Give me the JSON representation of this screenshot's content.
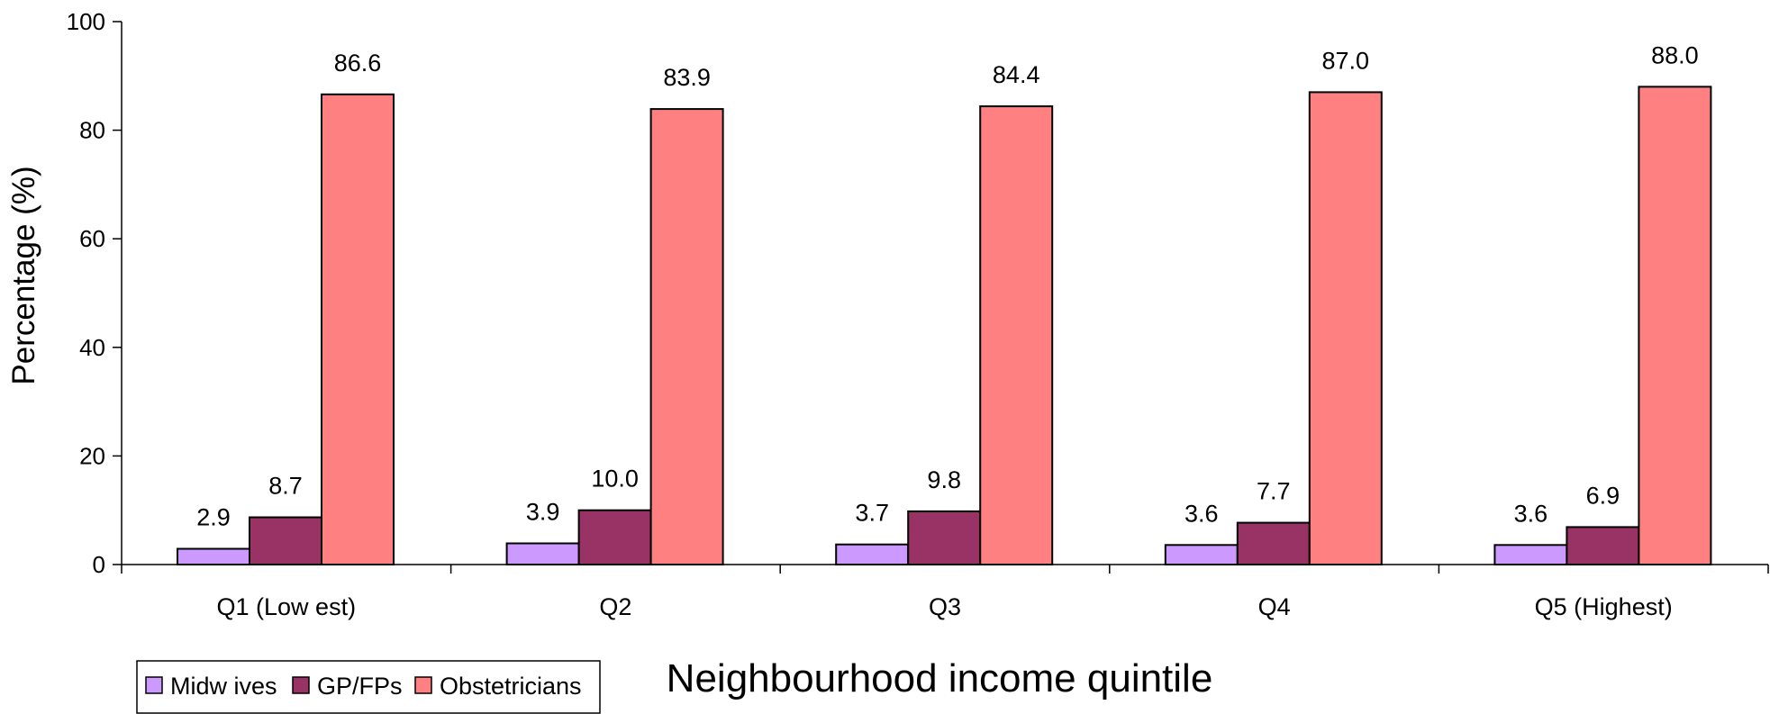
{
  "chart_data": {
    "type": "bar",
    "title": "",
    "xlabel": "Neighbourhood income quintile",
    "ylabel": "Percentage (%)",
    "ylim": [
      0,
      100
    ],
    "yticks": [
      "0",
      "20",
      "40",
      "60",
      "80",
      "100"
    ],
    "grid": false,
    "legend_position": "bottom-left",
    "categories": [
      "Q1 (Low est)",
      "Q2",
      "Q3",
      "Q4",
      "Q5 (Highest)"
    ],
    "series": [
      {
        "name": "Midw ives",
        "color": "#cc99ff",
        "values": [
          2.9,
          3.9,
          3.7,
          3.6,
          3.6
        ],
        "labels": [
          "2.9",
          "3.9",
          "3.7",
          "3.6",
          "3.6"
        ]
      },
      {
        "name": "GP/FPs",
        "color": "#993366",
        "values": [
          8.7,
          10.0,
          9.8,
          7.7,
          6.9
        ],
        "labels": [
          "8.7",
          "10.0",
          "9.8",
          "7.7",
          "6.9"
        ]
      },
      {
        "name": "Obstetricians",
        "color": "#ff8080",
        "values": [
          86.6,
          83.9,
          84.4,
          87.0,
          88.0
        ],
        "labels": [
          "86.6",
          "83.9",
          "84.4",
          "87.0",
          "88.0"
        ]
      }
    ]
  }
}
